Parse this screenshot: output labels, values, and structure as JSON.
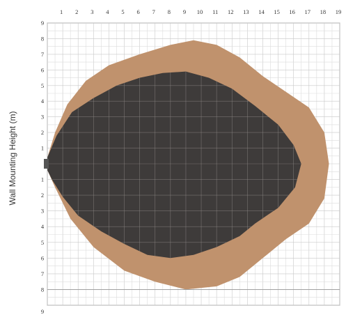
{
  "chart_data": {
    "type": "area",
    "title": "",
    "ylabel": "Wall Mounting Height (m)",
    "xlabel": "",
    "x_ticks": [
      "1",
      "2",
      "3",
      "4",
      "5",
      "6",
      "7",
      "8",
      "9",
      "10",
      "11",
      "12",
      "13",
      "14",
      "15",
      "16",
      "17",
      "18",
      "19"
    ],
    "y_ticks_top": [
      "9",
      "8",
      "7",
      "6",
      "5",
      "4",
      "3",
      "2",
      "1"
    ],
    "y_ticks_bottom": [
      "1",
      "2",
      "3",
      "4",
      "5",
      "6",
      "7",
      "8",
      "9"
    ],
    "grid": true,
    "series": [
      {
        "color": "#c0926d",
        "points": [
          [
            0,
            0.4
          ],
          [
            0.5,
            2
          ],
          [
            1.3,
            3.8
          ],
          [
            2.5,
            5.3
          ],
          [
            4,
            6.3
          ],
          [
            6,
            7
          ],
          [
            8,
            7.6
          ],
          [
            9.5,
            7.9
          ],
          [
            11,
            7.6
          ],
          [
            12.5,
            6.8
          ],
          [
            14,
            5.6
          ],
          [
            15.8,
            4.4
          ],
          [
            17,
            3.6
          ],
          [
            18,
            2
          ],
          [
            18.3,
            0
          ],
          [
            18,
            -2.2
          ],
          [
            17,
            -3.8
          ],
          [
            15.5,
            -4.8
          ],
          [
            14,
            -6
          ],
          [
            12.5,
            -7.2
          ],
          [
            11,
            -7.8
          ],
          [
            9,
            -8
          ],
          [
            7,
            -7.5
          ],
          [
            5,
            -6.8
          ],
          [
            3,
            -5.3
          ],
          [
            1.5,
            -3.5
          ],
          [
            0.5,
            -1.5
          ],
          [
            0,
            -0.4
          ]
        ]
      },
      {
        "color": "#3e3b3a",
        "points": [
          [
            0,
            0.4
          ],
          [
            0.6,
            1.8
          ],
          [
            1.6,
            3.3
          ],
          [
            3,
            4.2
          ],
          [
            4.5,
            5
          ],
          [
            6,
            5.5
          ],
          [
            7.5,
            5.8
          ],
          [
            9,
            5.9
          ],
          [
            10.5,
            5.5
          ],
          [
            12,
            4.8
          ],
          [
            13.5,
            3.7
          ],
          [
            15,
            2.5
          ],
          [
            16,
            1.2
          ],
          [
            16.5,
            0
          ],
          [
            16.1,
            -1.5
          ],
          [
            15,
            -2.8
          ],
          [
            13.5,
            -3.8
          ],
          [
            12.5,
            -4.6
          ],
          [
            11,
            -5.3
          ],
          [
            9.5,
            -5.8
          ],
          [
            8,
            -6
          ],
          [
            6.5,
            -5.8
          ],
          [
            5,
            -5.1
          ],
          [
            3.5,
            -4.3
          ],
          [
            2,
            -3.3
          ],
          [
            1,
            -2.1
          ],
          [
            0.3,
            -1
          ],
          [
            0,
            -0.4
          ]
        ]
      }
    ],
    "xlim": [
      0,
      19
    ],
    "ylim": [
      -9,
      9
    ],
    "colors": {
      "grid_minor": "#dcdcdc",
      "grid_major": "#c8c8c8",
      "axis": "#9a9a9a",
      "emitter": "#555555"
    }
  }
}
